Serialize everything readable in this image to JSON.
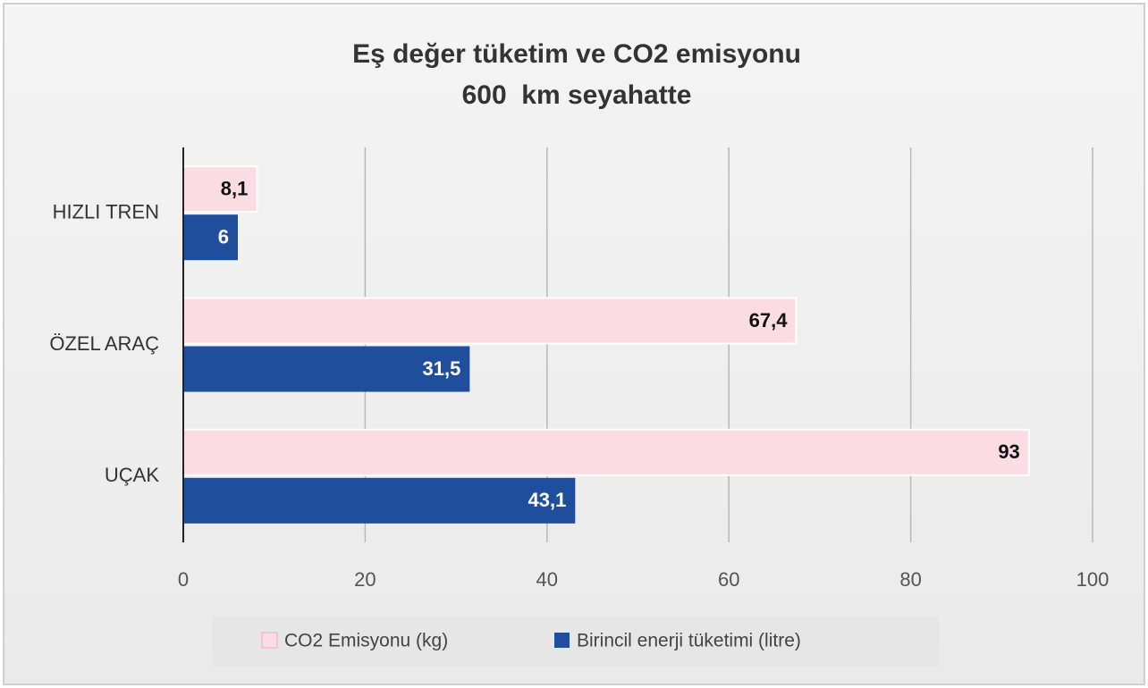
{
  "chart_data": {
    "type": "bar",
    "orientation": "horizontal",
    "title": "Eş değer tüketim ve CO2 emisyonu",
    "subtitle": "600  km seyahatte",
    "categories": [
      "HIZLI TREN",
      "ÖZEL ARAÇ",
      "UÇAK"
    ],
    "series": [
      {
        "name": "CO2 Emisyonu (kg)",
        "color": "#fcdce3",
        "values": [
          8.1,
          67.4,
          93
        ],
        "value_labels": [
          "8,1",
          "67,4",
          "93"
        ]
      },
      {
        "name": "Birincil enerji tüketimi (litre)",
        "color": "#1f4e9c",
        "values": [
          6,
          31.5,
          43.1
        ],
        "value_labels": [
          "6",
          "31,5",
          "43,1"
        ]
      }
    ],
    "xlim": [
      0,
      100
    ],
    "xticks": [
      0,
      20,
      40,
      60,
      80,
      100
    ],
    "grid": true,
    "legend": "bottom"
  }
}
